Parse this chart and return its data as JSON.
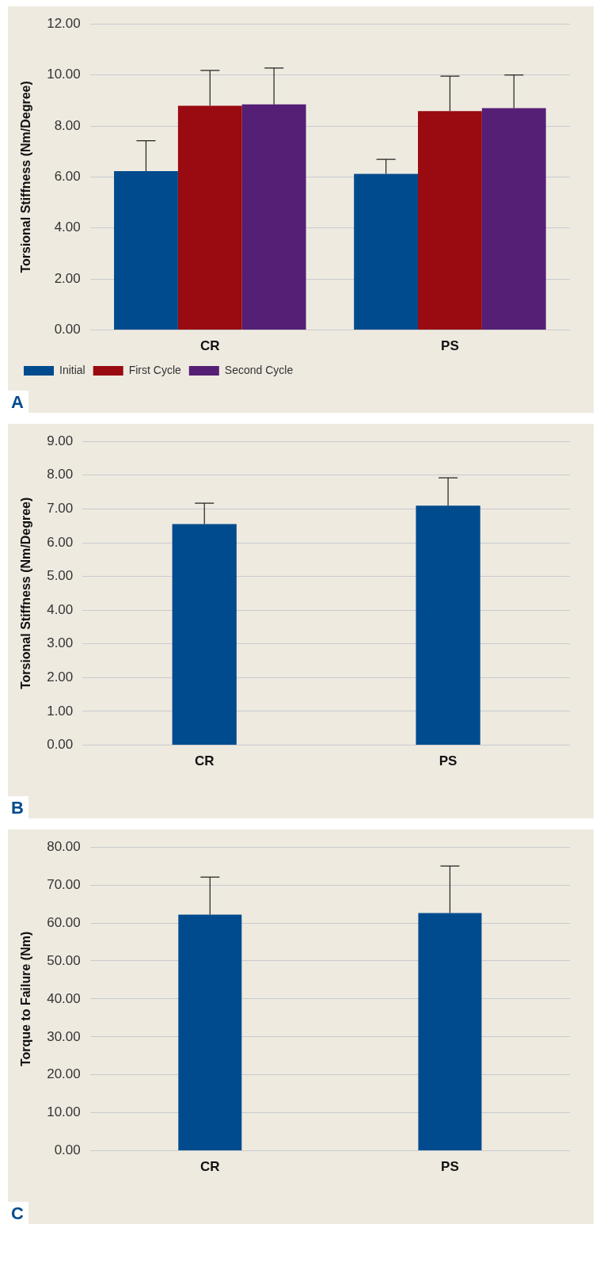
{
  "chart_data": [
    {
      "type": "bar",
      "ylabel": "Torsional Stiffness (Nm/Degree)",
      "categories": [
        "CR",
        "PS"
      ],
      "series": [
        {
          "name": "Initial",
          "color": "#004b8d",
          "values": [
            6.23,
            6.12
          ],
          "errors": [
            [
              6.23,
              7.42
            ],
            [
              6.12,
              6.69
            ]
          ]
        },
        {
          "name": "First Cycle",
          "color": "#990a11",
          "values": [
            8.79,
            8.58
          ],
          "errors": [
            [
              8.79,
              10.18
            ],
            [
              8.58,
              9.95
            ]
          ]
        },
        {
          "name": "Second Cycle",
          "color": "#551f75",
          "values": [
            8.85,
            8.7
          ],
          "errors": [
            [
              8.85,
              10.27
            ],
            [
              8.7,
              10.0
            ]
          ]
        }
      ],
      "ylim": [
        0,
        12
      ],
      "yticks": [
        {
          "value": 0,
          "label": "0.00"
        },
        {
          "value": 2,
          "label": "2.00"
        },
        {
          "value": 4,
          "label": "4.00"
        },
        {
          "value": 6,
          "label": "6.00"
        },
        {
          "value": 8,
          "label": "8.00"
        },
        {
          "value": 10,
          "label": "10.00"
        },
        {
          "value": 12,
          "label": "12.00"
        }
      ],
      "grid": "y",
      "legend": "bottom left",
      "annotations": [
        "A"
      ]
    },
    {
      "type": "bar",
      "ylabel": "Torsional Stiffness (Nm/Degree)",
      "categories": [
        "CR",
        "PS"
      ],
      "color": "#004b8d",
      "values": [
        6.55,
        7.1
      ],
      "errors": [
        [
          6.55,
          7.17
        ],
        [
          7.1,
          7.92
        ]
      ],
      "ylim": [
        0,
        9
      ],
      "yticks": [
        {
          "value": 0,
          "label": "0.00"
        },
        {
          "value": 1,
          "label": "1.00"
        },
        {
          "value": 2,
          "label": "2.00"
        },
        {
          "value": 3,
          "label": "3.00"
        },
        {
          "value": 4,
          "label": "4.00"
        },
        {
          "value": 5,
          "label": "5.00"
        },
        {
          "value": 6,
          "label": "6.00"
        },
        {
          "value": 7,
          "label": "7.00"
        },
        {
          "value": 8,
          "label": "8.00"
        },
        {
          "value": 9,
          "label": "9.00"
        }
      ],
      "grid": "y",
      "annotations": [
        "B"
      ]
    },
    {
      "type": "bar",
      "ylabel": "Torque to Failure (Nm)",
      "categories": [
        "CR",
        "PS"
      ],
      "color": "#004b8d",
      "values": [
        62.2,
        62.6
      ],
      "errors": [
        [
          62.2,
          72.1
        ],
        [
          62.6,
          75.0
        ]
      ],
      "ylim": [
        0,
        80
      ],
      "yticks": [
        {
          "value": 0,
          "label": "0.00"
        },
        {
          "value": 10,
          "label": "10.00"
        },
        {
          "value": 20,
          "label": "20.00"
        },
        {
          "value": 30,
          "label": "30.00"
        },
        {
          "value": 40,
          "label": "40.00"
        },
        {
          "value": 50,
          "label": "50.00"
        },
        {
          "value": 60,
          "label": "60.00"
        },
        {
          "value": 70,
          "label": "70.00"
        },
        {
          "value": 80,
          "label": "80.00"
        }
      ],
      "grid": "y",
      "annotations": [
        "C"
      ]
    }
  ]
}
